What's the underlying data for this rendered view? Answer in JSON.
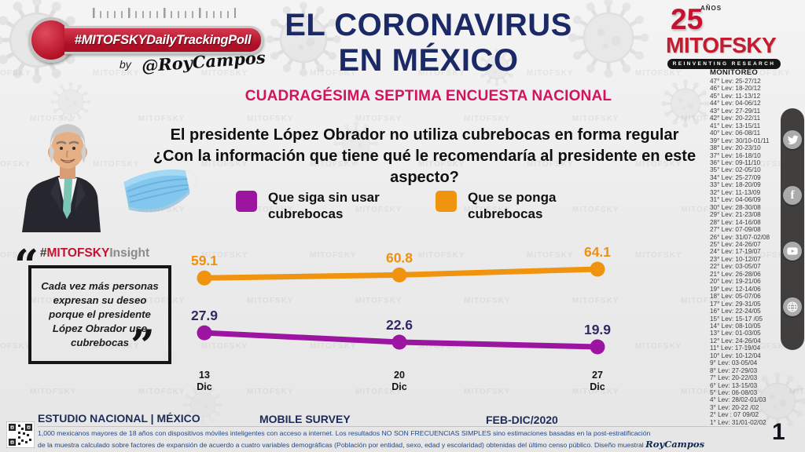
{
  "brand_watermark": "MITOFSKY",
  "header": {
    "badge_label": "#MITOFSKYDailyTrackingPoll",
    "byline_by": "by",
    "byline_author": "@RoyCampos",
    "title_line1": "EL CORONAVIRUS",
    "title_line2": "EN MÉXICO",
    "subtitle": "CUADRAGÉSIMA SEPTIMA ENCUESTA NACIONAL",
    "logo": {
      "years": "25",
      "years_label": "AÑOS",
      "name": "MITOFSKY",
      "tagline": "REINVENTING RESEARCH"
    }
  },
  "question": {
    "line1": "El presidente López Obrador no utiliza cubrebocas en forma regular",
    "line2": "¿Con la información que tiene qué le recomendaría al presidente en este aspecto?"
  },
  "legend": [
    {
      "label": "Que siga sin usar cubrebocas",
      "color": "#9C15A0"
    },
    {
      "label": "Que se ponga cubrebocas",
      "color": "#F0930E"
    }
  ],
  "insight": {
    "hash": "#",
    "brand": "MITOFSKY",
    "suffix": "Insight",
    "open_quote": "“",
    "close_quote": "”",
    "quote": "Cada vez más personas expresan su deseo porque el presidente López Obrador use cubrebocas"
  },
  "chart_data": {
    "type": "line",
    "categories": [
      "13",
      "20",
      "27"
    ],
    "x_unit": "Dic",
    "series": [
      {
        "name": "Que se ponga cubrebocas",
        "color": "#F0930E",
        "label_color": "#EF8F0A",
        "values": [
          59.1,
          60.8,
          64.1
        ]
      },
      {
        "name": "Que siga sin usar cubrebocas",
        "color": "#9C15A0",
        "label_color": "#312A66",
        "values": [
          27.9,
          22.6,
          19.9
        ]
      }
    ],
    "ylim": [
      0,
      100
    ],
    "grid": false,
    "legend_position": "top",
    "title": ""
  },
  "monitoreo": {
    "title": "MONITOREO",
    "items": [
      "47° Lev: 25-27/12",
      "46° Lev: 18-20/12",
      "45° Lev: 11-13/12",
      "44° Lev: 04-06/12",
      "43° Lev: 27-29/11",
      "42° Lev: 20-22/11",
      "41° Lev: 13-15/11",
      "40° Lev: 06-08/11",
      "39° Lev: 30/10-01/11",
      "38° Lev: 20-23/10",
      "37° Lev: 16-18/10",
      "36° Lev: 09-11/10",
      "35° Lev: 02-05/10",
      "34° Lev: 25-27/09",
      "33° Lev: 18-20/09",
      "32° Lev: 11-13/09",
      "31° Lev: 04-06/09",
      "30° Lev: 28-30/08",
      "29° Lev: 21-23/08",
      "28° Lev: 14-16/08",
      "27° Lev: 07-09/08",
      "26° Lev: 31/07-02/08",
      "25° Lev: 24-26/07",
      "24° Lev: 17-19/07",
      "23° Lev: 10-12/07",
      "22° Lev: 03-05/07",
      "21° Lev: 26-28/06",
      "20° Lev: 19-21/06",
      "19° Lev: 12-14/06",
      "18° Lev: 05-07/06",
      "17° Lev: 29-31/05",
      "16° Lev: 22-24/05",
      "15° Lev: 15-17 /05",
      "14° Lev: 08-10/05",
      "13° Lev: 01-03/05",
      "12° Lev: 24-26/04",
      "11° Lev: 17-19/04",
      "10° Lev: 10-12/04",
      "9° Lev: 03-05/04",
      "8° Lev: 27-29/03",
      "7° Lev: 20-22/03",
      "6° Lev: 13-15/03",
      "5° Lev: 06-08/03",
      "4° Lev: 28/02-01/03",
      "3° Lev: 20-22 /02",
      "2° Lev : 07 09/02",
      "1° Lev: 31/01-02/02"
    ]
  },
  "footer": {
    "study": "ESTUDIO NACIONAL | MÉXICO",
    "survey": "MOBILE SURVEY",
    "period": "FEB-DIC/2020",
    "fine_print_line1": "1,000 mexicanos mayores de 18 años con dispositivos móviles inteligentes con acceso a internet. Los resultados NO SON FRECUENCIAS SIMPLES sino estimaciones basadas en la post-estratificación",
    "fine_print_line2": "de la muestra calculado sobre factores de expansión de acuerdo a cuatro variables demográficas (Población por entidad, sexo, edad y escolaridad) obtenidas del último censo público. Diseño muestral",
    "signature": "RoyCampos",
    "page_number": "1"
  }
}
